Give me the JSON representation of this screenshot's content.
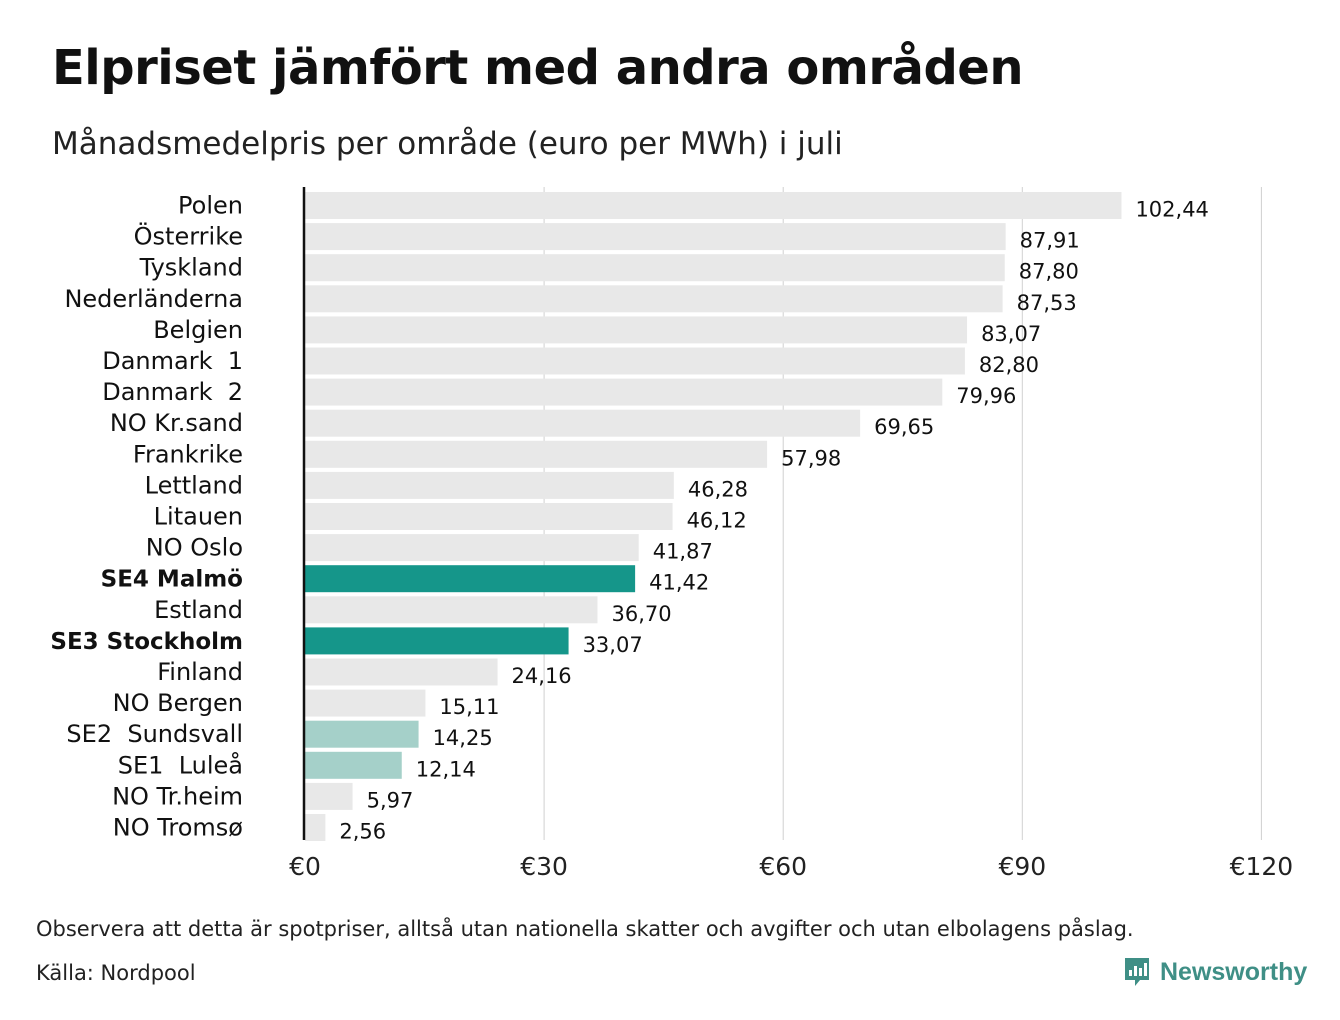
{
  "title": "Elpriset jämfört med andra områden",
  "subtitle": "Månadsmedelpris per område (euro per MWh) i juli",
  "note": "Observera att detta är spotpriser, alltså utan nationella skatter och avgifter och utan elbolagens påslag.",
  "source": "Källa: Nordpool",
  "brand": "Newsworthy",
  "colors": {
    "default_bar": "#e8e8e8",
    "highlight_bar": "#15968a",
    "light_highlight_bar": "#a5d0c9",
    "brand": "#3f8f86"
  },
  "chart_data": {
    "type": "bar",
    "orientation": "horizontal",
    "categories": [
      "Polen",
      "Österrike",
      "Tyskland",
      "Nederländerna",
      "Belgien",
      "Danmark  1",
      "Danmark  2",
      "NO Kr.sand",
      "Frankrike",
      "Lettland",
      "Litauen",
      "NO Oslo",
      "SE4 Malmö",
      "Estland",
      "SE3 Stockholm",
      "Finland",
      "NO Bergen",
      "SE2  Sundsvall",
      "SE1  Luleå",
      "NO Tr.heim",
      "NO Tromsø"
    ],
    "values": [
      102.44,
      87.91,
      87.8,
      87.53,
      83.07,
      82.8,
      79.96,
      69.65,
      57.98,
      46.28,
      46.12,
      41.87,
      41.42,
      36.7,
      33.07,
      24.16,
      15.11,
      14.25,
      12.14,
      5.97,
      2.56
    ],
    "value_labels": [
      "102,44",
      "87,91",
      "87,80",
      "87,53",
      "83,07",
      "82,80",
      "79,96",
      "69,65",
      "57,98",
      "46,28",
      "46,12",
      "41,87",
      "41,42",
      "36,70",
      "33,07",
      "24,16",
      "15,11",
      "14,25",
      "12,14",
      "5,97",
      "2,56"
    ],
    "highlight": [
      "default",
      "default",
      "default",
      "default",
      "default",
      "default",
      "default",
      "default",
      "default",
      "default",
      "default",
      "default",
      "highlight",
      "default",
      "highlight",
      "default",
      "default",
      "light",
      "light",
      "default",
      "default"
    ],
    "bold_labels": [
      false,
      false,
      false,
      false,
      false,
      false,
      false,
      false,
      false,
      false,
      false,
      false,
      true,
      false,
      true,
      false,
      false,
      false,
      false,
      false,
      false
    ],
    "xlim": [
      0,
      120
    ],
    "xticks": [
      0,
      30,
      60,
      90,
      120
    ],
    "xtick_labels": [
      "€0",
      "€30",
      "€60",
      "€90",
      "€120"
    ],
    "grid": true
  }
}
